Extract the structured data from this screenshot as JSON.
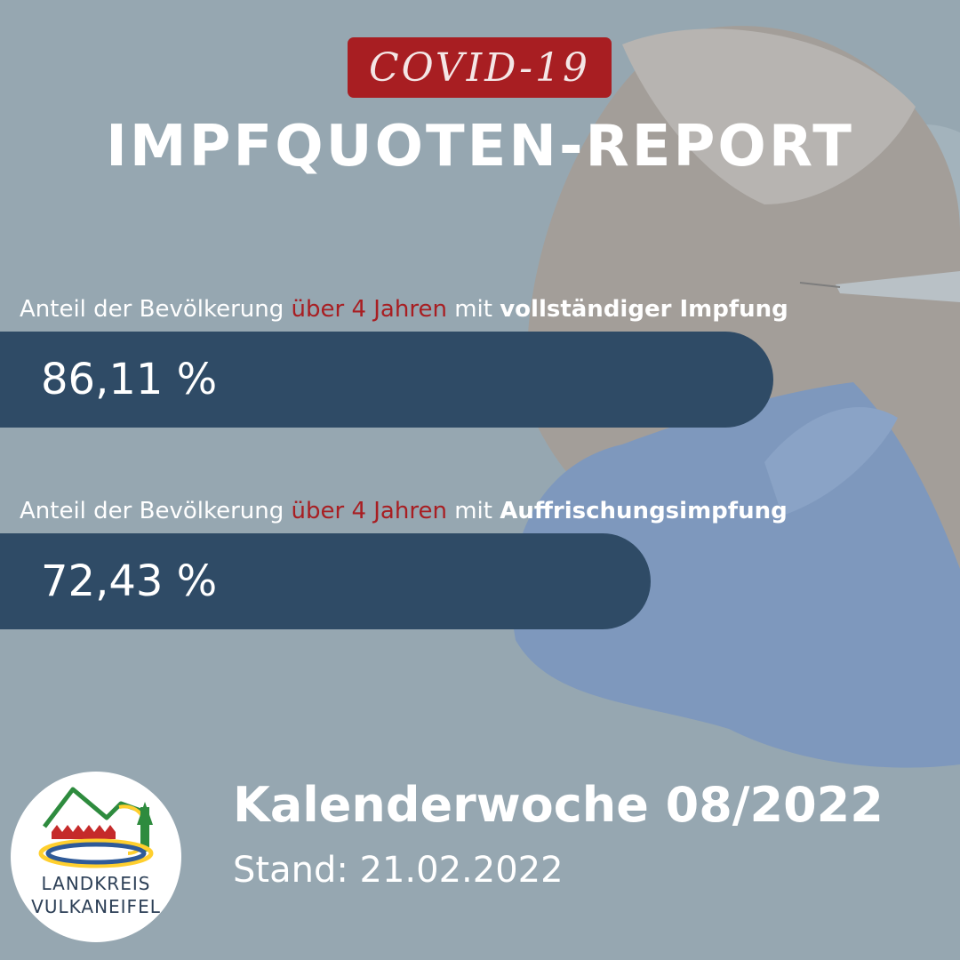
{
  "badge": {
    "text": "COVID-19"
  },
  "title": "IMPFQUOTEN-REPORT",
  "stats": [
    {
      "label_prefix": "Anteil der Bevölkerung ",
      "label_highlight": "über 4 Jahren",
      "label_middle": " mit ",
      "label_bold": "vollständiger Impfung",
      "value": "86,11 %",
      "percent": 86.11
    },
    {
      "label_prefix": "Anteil der Bevölkerung ",
      "label_highlight": "über 4 Jahren",
      "label_middle": " mit ",
      "label_bold": "Auffrischungsimpfung",
      "value": "72,43 %",
      "percent": 72.43
    }
  ],
  "footer": {
    "week": "Kalenderwoche 08/2022",
    "date": "Stand: 21.02.2022"
  },
  "logo": {
    "line1": "LANDKREIS",
    "line2": "VULKANEIFEL"
  },
  "colors": {
    "accent_red": "#a81e22",
    "bar_navy": "#2f4b66",
    "background": "#96a7b1",
    "logo_text": "#2c3f56"
  },
  "icons": [
    "vaccination-photo",
    "landkreis-logo"
  ]
}
